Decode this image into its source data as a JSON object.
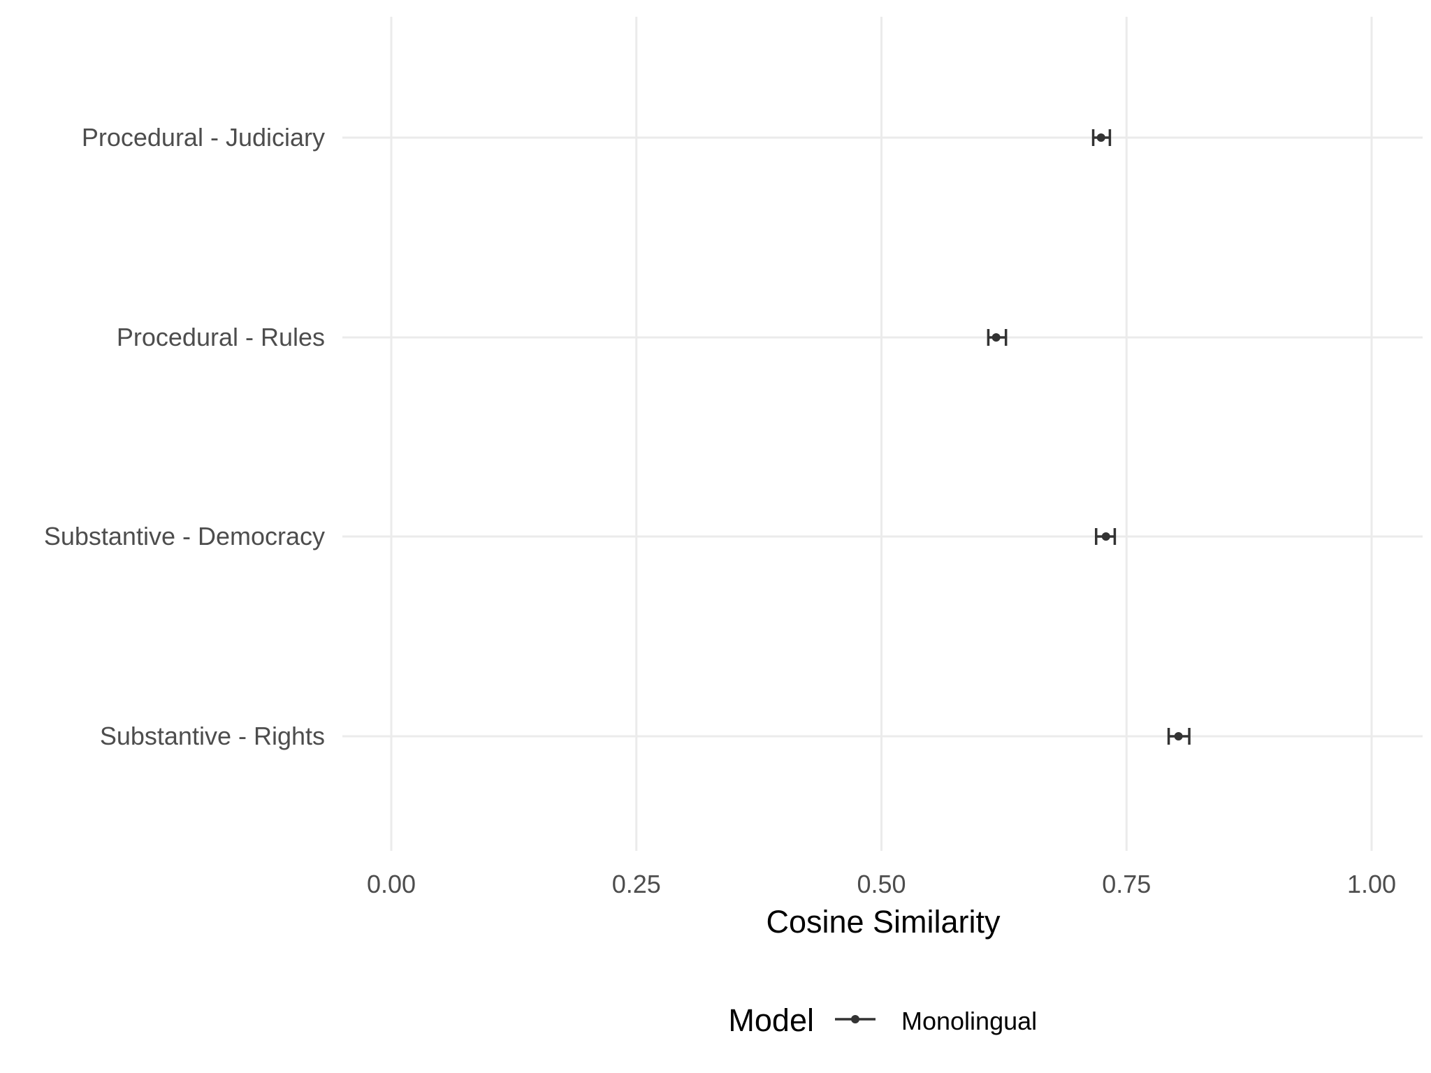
{
  "chart_data": {
    "type": "errorbar",
    "orientation": "horizontal",
    "xlabel": "Cosine Similarity",
    "ylabel": "",
    "xlim": [
      0,
      1
    ],
    "x_ticks": [
      "0.00",
      "0.25",
      "0.50",
      "0.75",
      "1.00"
    ],
    "categories": [
      "Procedural - Judiciary",
      "Procedural - Rules",
      "Substantive - Democracy",
      "Substantive - Rights"
    ],
    "series": [
      {
        "name": "Monolingual",
        "color": "#333333",
        "values": [
          0.724,
          0.617,
          0.729,
          0.803
        ],
        "lower": [
          0.716,
          0.609,
          0.719,
          0.793
        ],
        "upper": [
          0.733,
          0.627,
          0.738,
          0.814
        ]
      }
    ],
    "grid": true,
    "legend": {
      "title": "Model",
      "position": "bottom"
    }
  }
}
